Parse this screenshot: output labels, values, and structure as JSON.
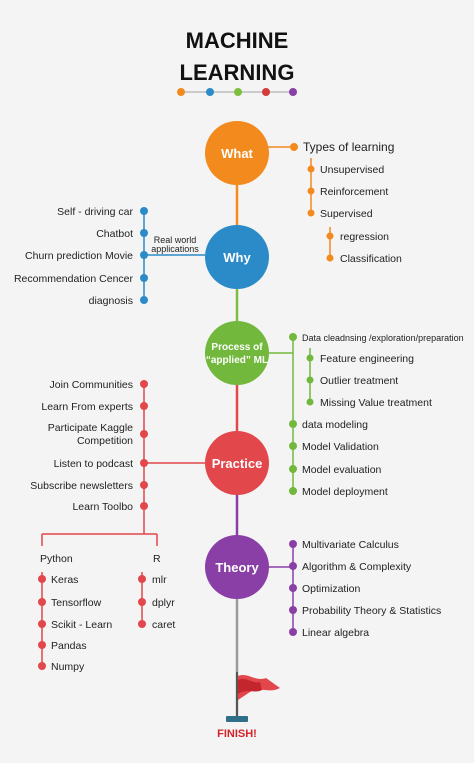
{
  "title": {
    "line1": "MACHINE",
    "line2": "LEARNING"
  },
  "title_dots": [
    "#f28a1e",
    "#2b8bc8",
    "#7cbf3f",
    "#d33b3b",
    "#8a3fa6"
  ],
  "colors": {
    "what": "#f28a1e",
    "why": "#2b8bc8",
    "process": "#72b83c",
    "practice": "#e2474b",
    "theory": "#8a3fa6",
    "spine": "#9a9a9a",
    "finish": "#d2232a"
  },
  "nodes": {
    "what": "What",
    "why": "Why",
    "process_line1": "Process of",
    "process_line2": "“applied” ML",
    "practice": "Practice",
    "theory": "Theory"
  },
  "what": {
    "heading": "Types of learning",
    "items": [
      "Unsupervised",
      "Reinforcement",
      "Supervised"
    ],
    "sub_items": [
      "regression",
      "Classification"
    ]
  },
  "why": {
    "connector_line1": "Real world",
    "connector_line2": "applications",
    "items": [
      "Self - driving car",
      "Chatbot",
      "Churn prediction Movie",
      "Recommendation Cencer",
      "diagnosis"
    ]
  },
  "process": {
    "heading": "Data cleadnsing /exploration/preparation",
    "sub_items": [
      "Feature engineering",
      "Outlier treatment",
      "Missing Value treatment"
    ],
    "items": [
      "data modeling",
      "Model Validation",
      "Model evaluation",
      "Model deployment"
    ]
  },
  "practice": {
    "items": [
      "Join Communities",
      "Learn From experts",
      "Participate Kaggle",
      "Listen to podcast",
      "Subscribe newsletters",
      "Learn Toolbo"
    ],
    "kaggle_line2": "Competition"
  },
  "tools": {
    "python_label": "Python",
    "python_items": [
      "Keras",
      "Tensorflow",
      "Scikit - Learn",
      "Pandas",
      "Numpy"
    ],
    "r_label": "R",
    "r_items": [
      "mlr",
      "dplyr",
      "caret"
    ]
  },
  "theory": {
    "items": [
      "Multivariate Calculus",
      "Algorithm & Complexity",
      "Optimization",
      "Probability Theory & Statistics",
      "Linear algebra"
    ]
  },
  "finish": "FINISH!"
}
